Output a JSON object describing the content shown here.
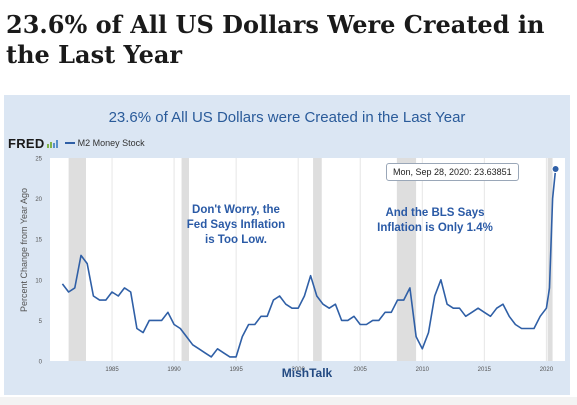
{
  "headline": "23.6% of All US Dollars Were Created in the Last Year",
  "chart_data": {
    "type": "line",
    "title": "23.6% of All US Dollars were Created in the Last Year",
    "source_logo": "FRED",
    "series": [
      {
        "name": "M2 Money Stock",
        "color": "#2f5fa6",
        "x": [
          1981.0,
          1981.5,
          1982.0,
          1982.5,
          1983.0,
          1983.5,
          1984.0,
          1984.5,
          1985.0,
          1985.5,
          1986.0,
          1986.5,
          1987.0,
          1987.5,
          1988.0,
          1988.5,
          1989.0,
          1989.5,
          1990.0,
          1990.5,
          1991.0,
          1991.5,
          1992.0,
          1992.5,
          1993.0,
          1993.5,
          1994.0,
          1994.5,
          1995.0,
          1995.5,
          1996.0,
          1996.5,
          1997.0,
          1997.5,
          1998.0,
          1998.5,
          1999.0,
          1999.5,
          2000.0,
          2000.5,
          2001.0,
          2001.5,
          2002.0,
          2002.5,
          2003.0,
          2003.5,
          2004.0,
          2004.5,
          2005.0,
          2005.5,
          2006.0,
          2006.5,
          2007.0,
          2007.5,
          2008.0,
          2008.5,
          2009.0,
          2009.5,
          2010.0,
          2010.5,
          2011.0,
          2011.5,
          2012.0,
          2012.5,
          2013.0,
          2013.5,
          2014.0,
          2014.5,
          2015.0,
          2015.5,
          2016.0,
          2016.5,
          2017.0,
          2017.5,
          2018.0,
          2018.5,
          2019.0,
          2019.5,
          2020.0,
          2020.25,
          2020.5,
          2020.74
        ],
        "y": [
          9.5,
          8.5,
          9.0,
          13.0,
          12.0,
          8.0,
          7.5,
          7.5,
          8.5,
          8.0,
          9.0,
          8.5,
          4.0,
          3.5,
          5.0,
          5.0,
          5.0,
          6.0,
          4.5,
          4.0,
          3.0,
          2.0,
          1.5,
          1.0,
          0.5,
          1.5,
          1.0,
          0.5,
          0.5,
          3.0,
          4.5,
          4.5,
          5.5,
          5.5,
          7.5,
          8.0,
          7.0,
          6.5,
          6.5,
          8.0,
          10.5,
          8.0,
          7.0,
          6.5,
          7.0,
          5.0,
          5.0,
          5.5,
          4.5,
          4.5,
          5.0,
          5.0,
          6.0,
          6.0,
          7.5,
          7.5,
          9.0,
          3.0,
          1.5,
          3.5,
          8.0,
          10.0,
          7.0,
          6.5,
          6.5,
          5.5,
          6.0,
          6.5,
          6.0,
          5.5,
          6.5,
          7.0,
          5.5,
          4.5,
          4.0,
          4.0,
          4.0,
          5.5,
          6.5,
          9.0,
          20.0,
          23.63851
        ]
      }
    ],
    "recessions": [
      [
        1981.5,
        1982.9
      ],
      [
        1990.6,
        1991.2
      ],
      [
        2001.2,
        2001.9
      ],
      [
        2007.95,
        2009.5
      ],
      [
        2020.1,
        2020.5
      ]
    ],
    "xlim": [
      1980.0,
      2021.5
    ],
    "ylim": [
      0,
      25
    ],
    "yticks": [
      0,
      5,
      10,
      15,
      20,
      25
    ],
    "xticks": [
      1985,
      1990,
      1995,
      2000,
      2005,
      2010,
      2015,
      2020
    ],
    "xlabel": "",
    "ylabel": "Percent Change from Year Ago",
    "grid": "vertical",
    "tooltip": "Mon, Sep 28, 2020: 23.63851",
    "annotations": [
      {
        "text_lines": [
          "Don't Worry, the",
          "Fed Says Inflation",
          "is Too Low."
        ]
      },
      {
        "text_lines": [
          "And the BLS Says",
          "Inflation is Only 1.4%"
        ]
      }
    ],
    "brand": "MishTalk"
  }
}
